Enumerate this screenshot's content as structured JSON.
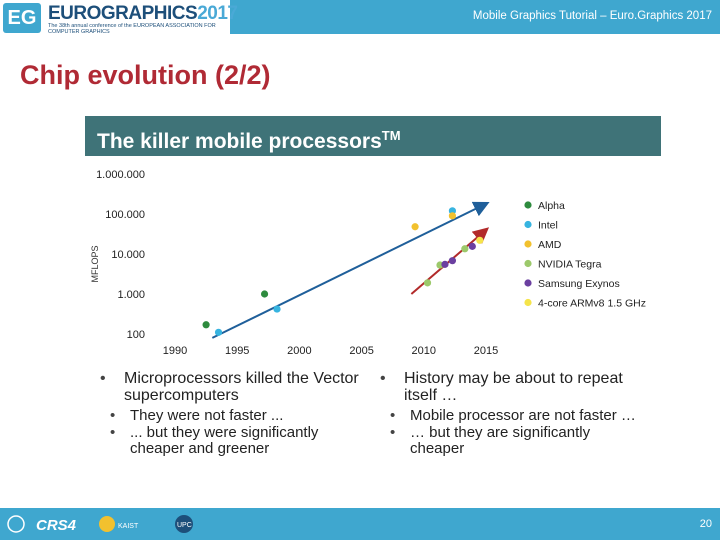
{
  "header": {
    "logo_badge": "EG",
    "logo_title": "EUROGRAPHICS",
    "logo_year": "2017",
    "logo_subtitle": "The 38th annual conference of the EUROPEAN ASSOCIATION FOR COMPUTER GRAPHICS",
    "tutorial": "Mobile Graphics Tutorial – Euro.Graphics 2017",
    "accent_color": "#3fa7cf"
  },
  "slide": {
    "title": "Chip evolution (2/2)",
    "title_color": "#b02a35"
  },
  "figure": {
    "banner": "The killer mobile processors",
    "banner_sup": "TM",
    "banner_color": "#3f7378"
  },
  "chart_data": {
    "type": "scatter",
    "ylabel": "MFLOPS",
    "y_scale": "log",
    "yticks": [
      "1.000.000",
      "100.000",
      "10.000",
      "1.000",
      "100"
    ],
    "ytick_values": [
      1000000,
      100000,
      10000,
      1000,
      100
    ],
    "xticks": [
      "1990",
      "1995",
      "2000",
      "2005",
      "2010",
      "2015"
    ],
    "xtick_values": [
      1990,
      1995,
      2000,
      2005,
      2010,
      2015
    ],
    "xlim": [
      1990,
      2015
    ],
    "ylim": [
      100,
      1000000
    ],
    "legend_position": "right",
    "series": [
      {
        "name": "Alpha",
        "color": "#2e8b3e",
        "points": [
          [
            1992.5,
            170
          ],
          [
            1997.2,
            1000
          ]
        ]
      },
      {
        "name": "Intel",
        "color": "#37b4e0",
        "points": [
          [
            1993.5,
            110
          ],
          [
            1998.2,
            420
          ],
          [
            2012.3,
            120000
          ]
        ]
      },
      {
        "name": "AMD",
        "color": "#f2c12e",
        "points": [
          [
            2009.3,
            48000
          ],
          [
            2012.3,
            90000
          ]
        ]
      },
      {
        "name": "NVIDIA Tegra",
        "color": "#9cc96b",
        "points": [
          [
            2010.3,
            1900
          ],
          [
            2011.3,
            5300
          ],
          [
            2013.3,
            13500
          ]
        ]
      },
      {
        "name": "Samsung Exynos",
        "color": "#6b3fa0",
        "points": [
          [
            2011.7,
            5500
          ],
          [
            2012.3,
            6800
          ],
          [
            2013.9,
            15500
          ]
        ]
      },
      {
        "name": "4-core ARMv8 1.5 GHz",
        "color": "#f5e44a",
        "points": [
          [
            2014.5,
            22000
          ]
        ]
      }
    ],
    "trend_lines": [
      {
        "color": "#1f5f9a",
        "from": [
          1993.0,
          80
        ],
        "to": [
          2015.0,
          180000
        ]
      },
      {
        "color": "#b22a2a",
        "from": [
          2009.0,
          1000
        ],
        "to": [
          2015.0,
          40000
        ]
      }
    ]
  },
  "bullets_left": {
    "main": "Microprocessors killed the Vector supercomputers",
    "subs": [
      "They were not faster ...",
      "... but they were significantly cheaper and greener"
    ]
  },
  "bullets_right": {
    "main": "History may be about to repeat itself …",
    "subs": [
      "Mobile processor are not faster …",
      "… but they are significantly cheaper"
    ]
  },
  "footer": {
    "page_number": "20",
    "logo_crs4": "CRS4",
    "logo_kaist": "KAIST",
    "logo_upc": "UPC"
  }
}
